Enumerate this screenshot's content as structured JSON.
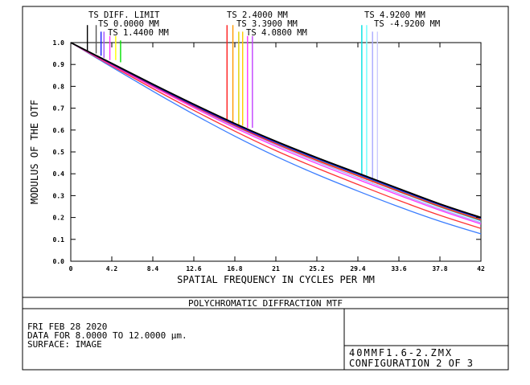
{
  "chart_data": {
    "type": "line",
    "title": "POLYCHROMATIC DIFFRACTION MTF",
    "xlabel": "SPATIAL FREQUENCY IN CYCLES PER MM",
    "ylabel": "MODULUS OF THE OTF",
    "xlim": [
      0,
      42
    ],
    "ylim": [
      0,
      1
    ],
    "x_ticks": [
      "0",
      "4.2",
      "8.4",
      "12.6",
      "16.8",
      "21",
      "25.2",
      "29.4",
      "33.6",
      "37.8",
      "42"
    ],
    "y_ticks": [
      "0.0",
      "0.1",
      "0.2",
      "0.3",
      "0.4",
      "0.5",
      "0.6",
      "0.7",
      "0.8",
      "0.9",
      "1.0"
    ],
    "grid": false,
    "legend_position": "top",
    "legend": [
      {
        "label": "TS DIFF. LIMIT",
        "color": "#000000"
      },
      {
        "label": "TS 0.0000 MM",
        "color": "#1a1aff"
      },
      {
        "label": "TS 1.4400 MM",
        "color": "#00e000"
      },
      {
        "label": "TS 2.4000 MM",
        "color": "#ff1f1f"
      },
      {
        "label": "TS 3.3900 MM",
        "color": "#e0d000"
      },
      {
        "label": "TS 4.0800 MM",
        "color": "#ff33ff"
      },
      {
        "label": "TS 4.9200 MM",
        "color": "#00e0e0"
      },
      {
        "label": "TS -4.9200 MM",
        "color": "#a8a8ff"
      }
    ],
    "series": [
      {
        "name": "TS DIFF. LIMIT",
        "color": "#000000",
        "x": [
          0,
          4.2,
          8.4,
          12.6,
          16.8,
          21,
          25.2,
          29.4,
          33.6,
          37.8,
          42
        ],
        "y": [
          1.0,
          0.905,
          0.81,
          0.718,
          0.63,
          0.549,
          0.474,
          0.403,
          0.332,
          0.262,
          0.2
        ]
      },
      {
        "name": "TS 0.0000 MM",
        "color": "#1a1aff",
        "x": [
          0,
          4.2,
          8.4,
          12.6,
          16.8,
          21,
          25.2,
          29.4,
          33.6,
          37.8,
          42
        ],
        "y": [
          1.0,
          0.902,
          0.806,
          0.713,
          0.625,
          0.543,
          0.468,
          0.397,
          0.326,
          0.257,
          0.195
        ]
      },
      {
        "name": "TS 1.4400 MM",
        "color": "#00e000",
        "x": [
          0,
          4.2,
          8.4,
          12.6,
          16.8,
          21,
          25.2,
          29.4,
          33.6,
          37.8,
          42
        ],
        "y": [
          1.0,
          0.903,
          0.807,
          0.715,
          0.627,
          0.545,
          0.47,
          0.399,
          0.328,
          0.259,
          0.197
        ]
      },
      {
        "name": "TS 2.4000 MM",
        "color": "#ff1f1f",
        "x": [
          0,
          4.2,
          8.4,
          12.6,
          16.8,
          21,
          25.2,
          29.4,
          33.6,
          37.8,
          42
        ],
        "y": [
          1.0,
          0.9,
          0.803,
          0.709,
          0.62,
          0.537,
          0.461,
          0.39,
          0.319,
          0.25,
          0.188
        ]
      },
      {
        "name": "TS 3.3900 MM",
        "color": "#e0d000",
        "x": [
          0,
          4.2,
          8.4,
          12.6,
          16.8,
          21,
          25.2,
          29.4,
          33.6,
          37.8,
          42
        ],
        "y": [
          1.0,
          0.901,
          0.805,
          0.711,
          0.622,
          0.54,
          0.464,
          0.393,
          0.322,
          0.253,
          0.191
        ]
      },
      {
        "name": "TS 4.0800 MM",
        "color": "#ff33ff",
        "x": [
          0,
          4.2,
          8.4,
          12.6,
          16.8,
          21,
          25.2,
          29.4,
          33.6,
          37.8,
          42
        ],
        "y": [
          1.0,
          0.897,
          0.798,
          0.702,
          0.61,
          0.525,
          0.447,
          0.374,
          0.302,
          0.233,
          0.17
        ]
      },
      {
        "name": "TS 4.9200 MM",
        "color": "#00e0e0",
        "x": [
          0,
          4.2,
          8.4,
          12.6,
          16.8,
          21,
          25.2,
          29.4,
          33.6,
          37.8,
          42
        ],
        "y": [
          1.0,
          0.902,
          0.805,
          0.712,
          0.623,
          0.54,
          0.463,
          0.391,
          0.318,
          0.248,
          0.185
        ]
      },
      {
        "name": "TS -4.9200 MM",
        "color": "#a8a8ff",
        "x": [
          0,
          4.2,
          8.4,
          12.6,
          16.8,
          21,
          25.2,
          29.4,
          33.6,
          37.8,
          42
        ],
        "y": [
          1.0,
          0.899,
          0.801,
          0.706,
          0.616,
          0.532,
          0.455,
          0.382,
          0.309,
          0.239,
          0.176
        ]
      },
      {
        "name": "",
        "color": "#ff3333",
        "x": [
          0,
          4.2,
          8.4,
          12.6,
          16.8,
          21,
          25.2,
          29.4,
          33.6,
          37.8,
          42
        ],
        "y": [
          1.0,
          0.893,
          0.79,
          0.69,
          0.595,
          0.506,
          0.426,
          0.351,
          0.278,
          0.21,
          0.15
        ]
      },
      {
        "name": "",
        "color": "#3a7dff",
        "x": [
          0,
          4.2,
          8.4,
          12.6,
          16.8,
          21,
          25.2,
          29.4,
          33.6,
          37.8,
          42
        ],
        "y": [
          1.0,
          0.888,
          0.778,
          0.672,
          0.572,
          0.48,
          0.397,
          0.321,
          0.249,
          0.183,
          0.125
        ]
      }
    ],
    "markers": [
      {
        "color": "#000000",
        "x": 1.7,
        "top": 1.08,
        "bottom": 0.96
      },
      {
        "color": "#555555",
        "x": 2.6,
        "top": 1.08,
        "bottom": 0.95
      },
      {
        "color": "#1a1aff",
        "x": 3.1,
        "top": 1.05,
        "bottom": 0.94
      },
      {
        "color": "#a050ff",
        "x": 3.4,
        "top": 1.05,
        "bottom": 0.93
      },
      {
        "color": "#ff33ff",
        "x": 4.0,
        "top": 1.03,
        "bottom": 0.92
      },
      {
        "color": "#ffff00",
        "x": 4.6,
        "top": 1.03,
        "bottom": 0.92
      },
      {
        "color": "#00e000",
        "x": 5.1,
        "top": 1.01,
        "bottom": 0.91
      },
      {
        "color": "#ff1f1f",
        "x": 16.0,
        "top": 1.08,
        "bottom": 0.64
      },
      {
        "color": "#ff9900",
        "x": 16.6,
        "top": 1.08,
        "bottom": 0.63
      },
      {
        "color": "#e0d000",
        "x": 17.2,
        "top": 1.05,
        "bottom": 0.62
      },
      {
        "color": "#ffcc00",
        "x": 17.6,
        "top": 1.05,
        "bottom": 0.62
      },
      {
        "color": "#ff33ff",
        "x": 18.1,
        "top": 1.03,
        "bottom": 0.61
      },
      {
        "color": "#c040ff",
        "x": 18.6,
        "top": 1.03,
        "bottom": 0.61
      },
      {
        "color": "#00e0e0",
        "x": 29.8,
        "top": 1.08,
        "bottom": 0.38
      },
      {
        "color": "#66ffff",
        "x": 30.3,
        "top": 1.08,
        "bottom": 0.37
      },
      {
        "color": "#a8a8ff",
        "x": 30.9,
        "top": 1.05,
        "bottom": 0.36
      },
      {
        "color": "#ccccff",
        "x": 31.4,
        "top": 1.05,
        "bottom": 0.35
      }
    ]
  },
  "info": {
    "date": "FRI FEB 28 2020",
    "data_range": "DATA FOR 8.0000 TO 12.0000 µm.",
    "surface": "SURFACE: IMAGE",
    "file": "40MMF1.6-2.ZMX",
    "configuration": "CONFIGURATION 2 OF 3"
  }
}
